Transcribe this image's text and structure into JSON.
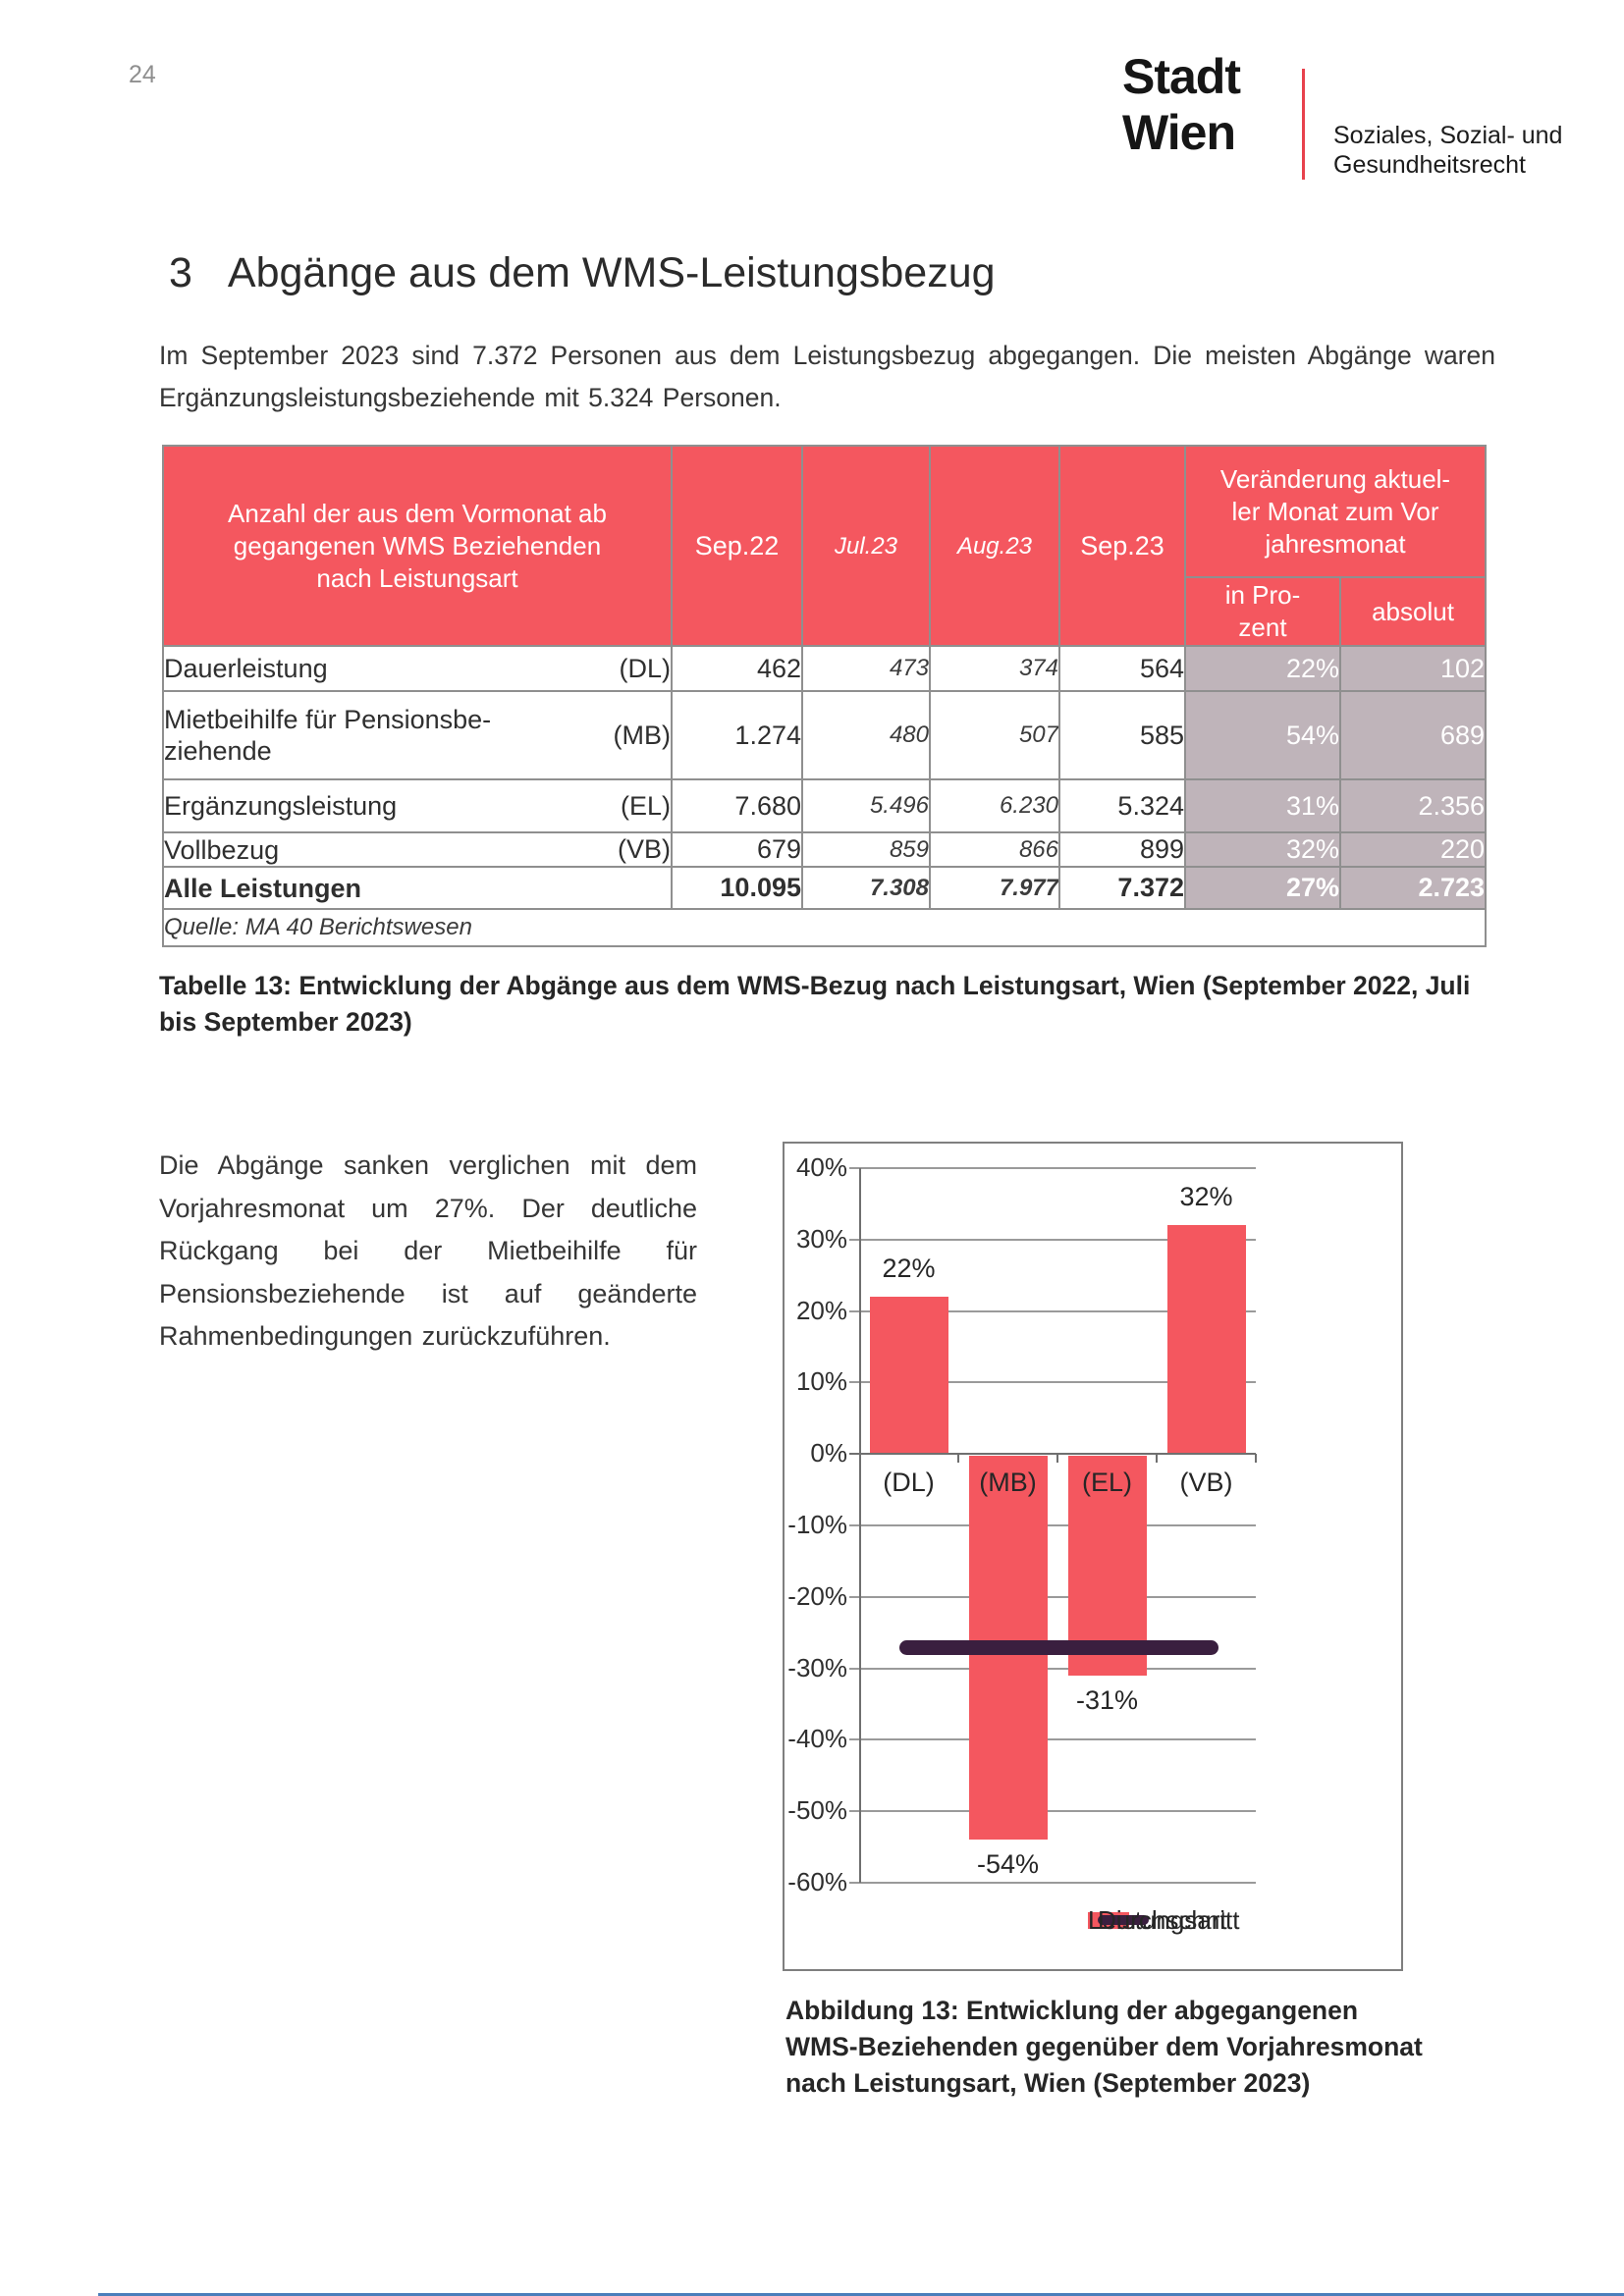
{
  "page": {
    "number": "24"
  },
  "logo": {
    "brand": "Stadt\nWien",
    "department": "Soziales, Sozial- und\nGesundheitsrecht"
  },
  "heading": {
    "number": "3",
    "text": "Abgänge aus dem WMS-Leistungsbezug"
  },
  "intro": "Im September 2023 sind 7.372 Personen aus dem Leistungsbezug abgegangen. Die meisten Abgänge waren Ergänzungsleistungsbeziehende mit 5.324 Personen.",
  "table": {
    "header": {
      "label": "Anzahl der aus dem Vormonat ab\ngegangenen WMS Beziehenden\nnach Leistungsart",
      "col_sep22": "Sep.22",
      "col_jul23": "Jul.23",
      "col_aug23": "Aug.23",
      "col_sep23": "Sep.23",
      "change_group": "Veränderung aktuel-\nler Monat zum Vor\njahresmonat",
      "sub_percent": "in Pro-\nzent",
      "sub_absolut": "absolut"
    },
    "rows": [
      {
        "name": "Dauerleistung",
        "abbr": "(DL)",
        "sep22": "462",
        "jul23": "473",
        "aug23": "374",
        "sep23": "564",
        "pct": "22%",
        "abs": "102"
      },
      {
        "name": "Mietbeihilfe für Pensionsbe-\nziehende",
        "abbr": "(MB)",
        "sep22": "1.274",
        "jul23": "480",
        "aug23": "507",
        "sep23": "585",
        "pct": "54%",
        "abs": "689"
      },
      {
        "name": "Ergänzungsleistung",
        "abbr": "(EL)",
        "sep22": "7.680",
        "jul23": "5.496",
        "aug23": "6.230",
        "sep23": "5.324",
        "pct": "31%",
        "abs": "2.356"
      },
      {
        "name": "Vollbezug",
        "abbr": "(VB)",
        "sep22": "679",
        "jul23": "859",
        "aug23": "866",
        "sep23": "899",
        "pct": "32%",
        "abs": "220"
      },
      {
        "name": "Alle Leistungen",
        "abbr": "",
        "sep22": "10.095",
        "jul23": "7.308",
        "aug23": "7.977",
        "sep23": "7.372",
        "pct": "27%",
        "abs": "2.723"
      }
    ],
    "source": "Quelle: MA 40 Berichtswesen"
  },
  "table_caption": "Tabelle 13: Entwicklung der Abgänge aus dem WMS-Bezug nach Leistungsart, Wien (September 2022, Juli bis September 2023)",
  "body_text": "Die Abgänge sanken verglichen mit dem Vorjahresmonat um 27%. Der deutliche Rückgang bei der Mietbeihilfe für Pensionsbeziehende ist auf geänderte Rahmenbedingungen zurückzuführen.",
  "chart_data": {
    "type": "bar",
    "categories": [
      "(DL)",
      "(MB)",
      "(EL)",
      "(VB)"
    ],
    "values": [
      22,
      -54,
      -31,
      32
    ],
    "value_labels": [
      "22%",
      "-54%",
      "-31%",
      "32%"
    ],
    "average_line": -27,
    "ylim": [
      -60,
      40
    ],
    "ytick_step": 10,
    "ytick_labels": [
      "40%",
      "30%",
      "20%",
      "10%",
      "0%",
      "-10%",
      "-20%",
      "-30%",
      "-40%",
      "-50%",
      "-60%"
    ],
    "grid": true,
    "legend_position": "bottom",
    "legend": [
      {
        "label": "Leistungsart",
        "type": "bar",
        "color": "#f4575f"
      },
      {
        "label": "Durchschnitt",
        "type": "line",
        "color": "#3a1f3f"
      }
    ],
    "bar_color": "#f4575f",
    "line_color": "#3a1f3f"
  },
  "figure_caption": "Abbildung 13: Entwicklung der abgegangenen WMS-Beziehenden gegenüber dem Vorjahresmonat nach Leistungsart, Wien (September 2023)",
  "colors": {
    "accent_red": "#f4575f",
    "logo_red": "#e8424d",
    "grey_cell": "#bfb4ba",
    "avg_line_purple": "#3a1f3f",
    "bottom_rule_blue": "#4a7ebb"
  }
}
